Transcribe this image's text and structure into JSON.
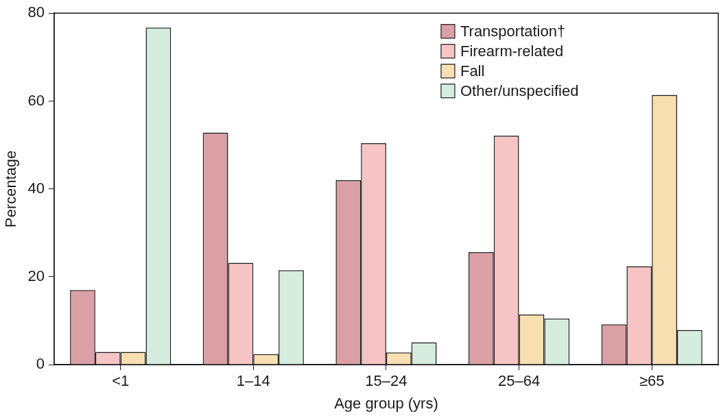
{
  "chart_data": {
    "type": "bar",
    "x_label": "Age group (yrs)",
    "y_label": "Percentage",
    "categories": [
      "<1",
      "1–14",
      "15–24",
      "25–64",
      "≥65"
    ],
    "series": [
      {
        "name": "Transportation†",
        "color": "#dba0a6",
        "values": [
          17.0,
          52.8,
          42.0,
          25.6,
          9.2
        ]
      },
      {
        "name": "Firearm-related",
        "color": "#f6c4c4",
        "values": [
          2.9,
          23.2,
          50.4,
          52.1,
          22.4
        ]
      },
      {
        "name": "Fall",
        "color": "#f8dfb1",
        "values": [
          2.9,
          2.4,
          2.8,
          11.4,
          61.4
        ]
      },
      {
        "name": "Other/unspecified",
        "color": "#d5ecdf",
        "values": [
          76.7,
          21.5,
          5.1,
          10.5,
          7.9
        ]
      }
    ],
    "ylim": [
      0,
      80
    ],
    "yticks": [
      0,
      20,
      40,
      60,
      80
    ],
    "grid": false,
    "legend": "top-right"
  }
}
